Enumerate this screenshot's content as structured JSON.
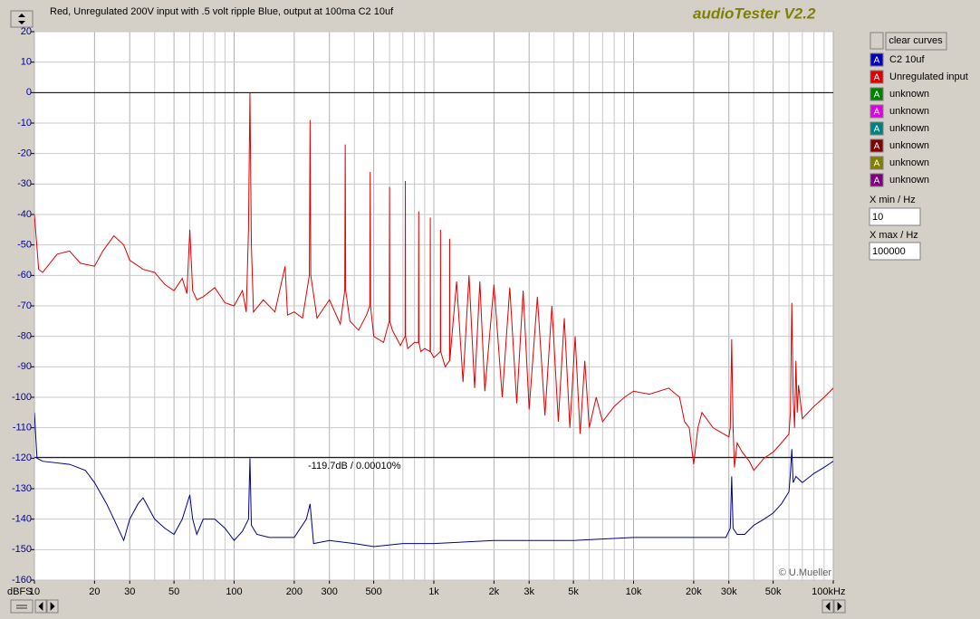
{
  "window": {
    "caption": "Red, Unregulated 200V input with .5 volt ripple Blue, output at 100ma C2 10uf",
    "app_title": "audioTester V2.2"
  },
  "chart_data": {
    "type": "line",
    "x_scale": "log",
    "grid": true,
    "xlim": [
      10,
      100000
    ],
    "ylim": [
      -160,
      20
    ],
    "xticks": [
      10,
      20,
      30,
      50,
      100,
      200,
      300,
      500,
      {
        "value": 1000,
        "label": "1k"
      },
      {
        "value": 2000,
        "label": "2k"
      },
      {
        "value": 3000,
        "label": "3k"
      },
      {
        "value": 5000,
        "label": "5k"
      },
      {
        "value": 10000,
        "label": "10k"
      },
      {
        "value": 20000,
        "label": "20k"
      },
      {
        "value": 30000,
        "label": "30k"
      },
      {
        "value": 50000,
        "label": "50k"
      },
      {
        "value": 100000,
        "label": "100k"
      }
    ],
    "xminorticks": [
      40,
      60,
      70,
      80,
      90,
      400,
      600,
      700,
      800,
      900,
      4000,
      6000,
      7000,
      8000,
      9000,
      40000,
      60000,
      70000,
      80000,
      90000
    ],
    "yticks": [
      20,
      10,
      0,
      -10,
      -20,
      -30,
      -40,
      -50,
      -60,
      -70,
      -80,
      -90,
      -100,
      -110,
      -120,
      -130,
      -140,
      -150,
      -160
    ],
    "y_unit_label": "dBFS",
    "x_unit_label": "Hz",
    "reference_lines": [
      0,
      -119.7
    ],
    "annotation": "-119.7dB / 0.00010%",
    "credit": "© U.Mueller",
    "series": [
      {
        "name": "Unregulated input",
        "color": "#e00000",
        "x": [
          10,
          10.5,
          11,
          13,
          15,
          17,
          20,
          22,
          25,
          28,
          30,
          35,
          40,
          45,
          50,
          55,
          58,
          60,
          62,
          65,
          70,
          80,
          90,
          100,
          110,
          115,
          118,
          120,
          122,
          125,
          140,
          160,
          180,
          185,
          200,
          220,
          238,
          240,
          242,
          260,
          300,
          340,
          358,
          360,
          362,
          380,
          420,
          460,
          478,
          480,
          482,
          500,
          560,
          598,
          600,
          602,
          620,
          680,
          718,
          720,
          722,
          740,
          800,
          838,
          840,
          842,
          860,
          900,
          958,
          960,
          962,
          1000,
          1078,
          1080,
          1082,
          1140,
          1198,
          1200,
          1202,
          1300,
          1400,
          1500,
          1600,
          1700,
          1800,
          2000,
          2200,
          2400,
          2600,
          2800,
          3000,
          3300,
          3600,
          3900,
          4200,
          4500,
          4800,
          5100,
          5400,
          5700,
          6000,
          6500,
          7000,
          8000,
          9000,
          10000,
          12000,
          15000,
          17000,
          18000,
          19000,
          20000,
          21000,
          22000,
          25000,
          30000,
          30500,
          31000,
          31500,
          32000,
          33000,
          35000,
          38000,
          40000,
          45000,
          50000,
          55000,
          60000,
          61000,
          62000,
          63000,
          64000,
          65000,
          66000,
          67000,
          70000,
          80000,
          90000,
          100000
        ],
        "values": [
          -40,
          -58,
          -59,
          -53,
          -52,
          -56,
          -57,
          -52,
          -47,
          -50,
          -55,
          -58,
          -59,
          -63,
          -65,
          -61,
          -66,
          -45,
          -65,
          -68,
          -67,
          -64,
          -69,
          -70,
          -65,
          -72,
          -45,
          0,
          -50,
          -72,
          -68,
          -72,
          -57,
          -73,
          -72,
          -74,
          -60,
          -9,
          -60,
          -74,
          -68,
          -76,
          -65,
          -17,
          -65,
          -75,
          -78,
          -73,
          -70,
          -26,
          -70,
          -80,
          -82,
          -75,
          -31,
          -75,
          -78,
          -83,
          -80,
          -29,
          -80,
          -84,
          -82,
          -82,
          -39,
          -82,
          -85,
          -84,
          -85,
          -41,
          -85,
          -87,
          -85,
          -45,
          -85,
          -90,
          -88,
          -48,
          -88,
          -62,
          -95,
          -60,
          -97,
          -62,
          -98,
          -63,
          -100,
          -64,
          -102,
          -65,
          -104,
          -67,
          -106,
          -70,
          -108,
          -74,
          -110,
          -80,
          -112,
          -88,
          -110,
          -100,
          -108,
          -103,
          -100,
          -98,
          -99,
          -97,
          -100,
          -108,
          -110,
          -122,
          -110,
          -105,
          -110,
          -113,
          -110,
          -81,
          -110,
          -123,
          -115,
          -118,
          -121,
          -124,
          -120,
          -118,
          -115,
          -112,
          -105,
          -69,
          -100,
          -110,
          -88,
          -105,
          -96,
          -107,
          -103,
          -100,
          -97
        ]
      },
      {
        "name": "C2 10uf",
        "color": "#00008b",
        "x": [
          10,
          10.3,
          11,
          15,
          18,
          20,
          23,
          25,
          28,
          30,
          33,
          35,
          40,
          45,
          50,
          55,
          60,
          62,
          65,
          70,
          80,
          90,
          100,
          110,
          118,
          120,
          122,
          130,
          150,
          200,
          230,
          240,
          250,
          300,
          400,
          500,
          700,
          1000,
          2000,
          3000,
          5000,
          10000,
          20000,
          29000,
          30500,
          31000,
          31500,
          33000,
          36000,
          40000,
          45000,
          50000,
          55000,
          60000,
          61000,
          62000,
          63000,
          65000,
          70000,
          80000,
          90000,
          100000
        ],
        "values": [
          -105,
          -120,
          -121,
          -122,
          -124,
          -128,
          -135,
          -140,
          -147,
          -140,
          -135,
          -133,
          -140,
          -143,
          -145,
          -140,
          -132,
          -140,
          -145,
          -140,
          -140,
          -143,
          -147,
          -144,
          -140,
          -120,
          -142,
          -145,
          -146,
          -146,
          -140,
          -135,
          -148,
          -147,
          -148,
          -149,
          -148,
          -148,
          -147,
          -147,
          -147,
          -146,
          -146,
          -146,
          -143,
          -126,
          -143,
          -145,
          -145,
          -142,
          -140,
          -138,
          -135,
          -131,
          -125,
          -117,
          -128,
          -126,
          -128,
          -125,
          -123,
          -121
        ]
      }
    ]
  },
  "panel": {
    "button": "clear curves",
    "curve_icon": "A",
    "curves": [
      {
        "label": "C2 10uf",
        "color": "#0000c0"
      },
      {
        "label": "Unregulated input",
        "color": "#e00000"
      },
      {
        "label": "unknown",
        "color": "#008000"
      },
      {
        "label": "unknown",
        "color": "#e000e0"
      },
      {
        "label": "unknown",
        "color": "#008080"
      },
      {
        "label": "unknown",
        "color": "#800000"
      },
      {
        "label": "unknown",
        "color": "#808000"
      },
      {
        "label": "unknown",
        "color": "#800080"
      }
    ],
    "xmin_label": "X min / Hz",
    "xmin": "10",
    "xmax_label": "X max / Hz",
    "xmax": "100000"
  }
}
